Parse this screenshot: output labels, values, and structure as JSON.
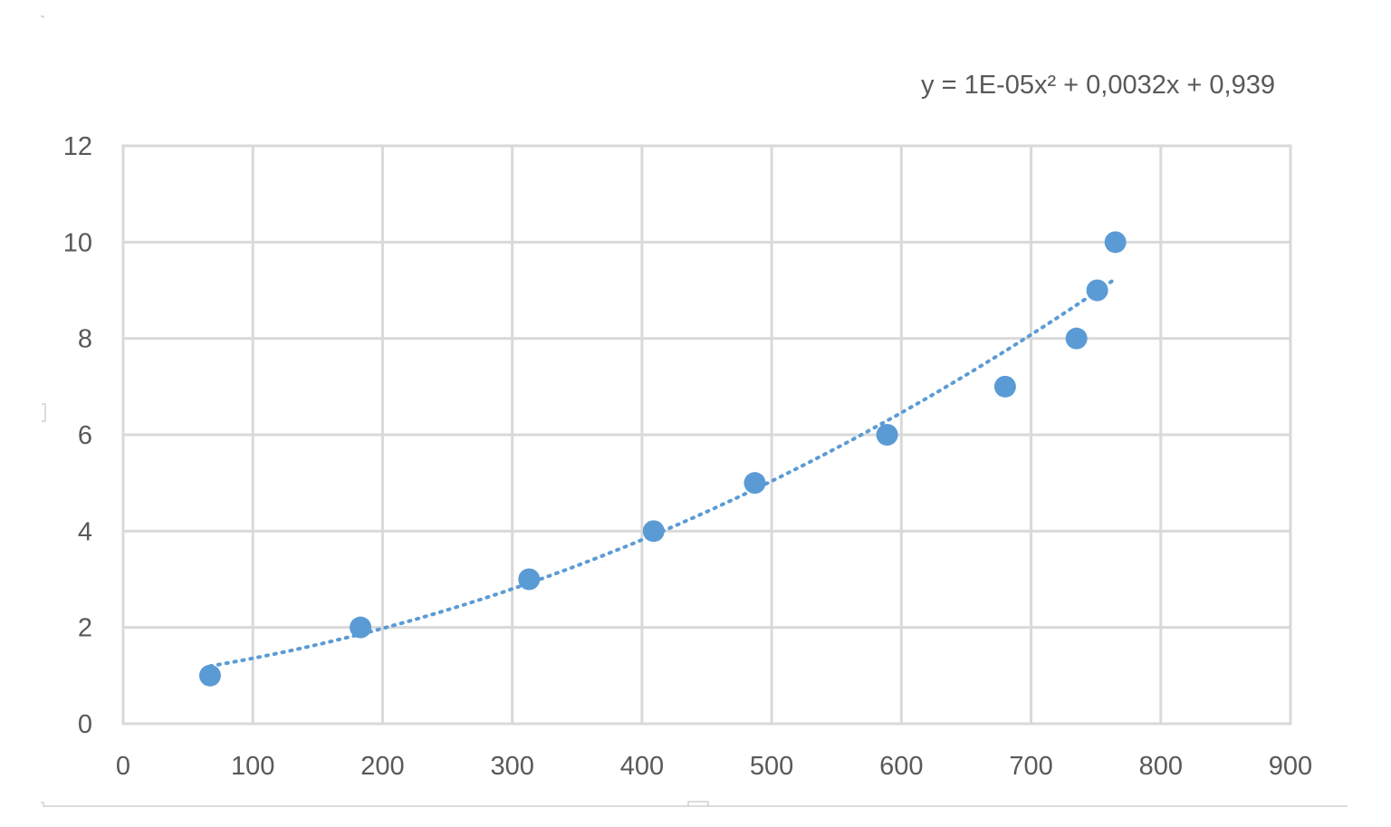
{
  "chart_data": {
    "type": "scatter",
    "title": "",
    "xlabel": "",
    "ylabel": "",
    "xlim": [
      0,
      900
    ],
    "ylim": [
      0,
      12
    ],
    "x_ticks": [
      "0",
      "100",
      "200",
      "300",
      "400",
      "500",
      "600",
      "700",
      "800",
      "900"
    ],
    "y_ticks": [
      "0",
      "2",
      "4",
      "6",
      "8",
      "10",
      "12"
    ],
    "grid": true,
    "legend": "none",
    "series": [
      {
        "x": [
          67,
          183,
          313,
          409,
          487,
          589,
          680,
          735,
          751,
          765
        ],
        "y": [
          1,
          2,
          3,
          4,
          5,
          6,
          7,
          8,
          9,
          10
        ],
        "color": "#5b9bd5"
      }
    ],
    "trendline": {
      "type": "polynomial",
      "order": 2,
      "coefficients": {
        "a": 1e-05,
        "b": 0.0032,
        "c": 0.939
      },
      "x_range": [
        67,
        765
      ],
      "style": "dotted",
      "color": "#5b9bd5",
      "equation_label": "y = 1E-05x² + 0,0032x + 0,939"
    }
  },
  "colors": {
    "grid": "#d9d9d9",
    "tick_text": "#595959",
    "marker": "#5b9bd5"
  }
}
